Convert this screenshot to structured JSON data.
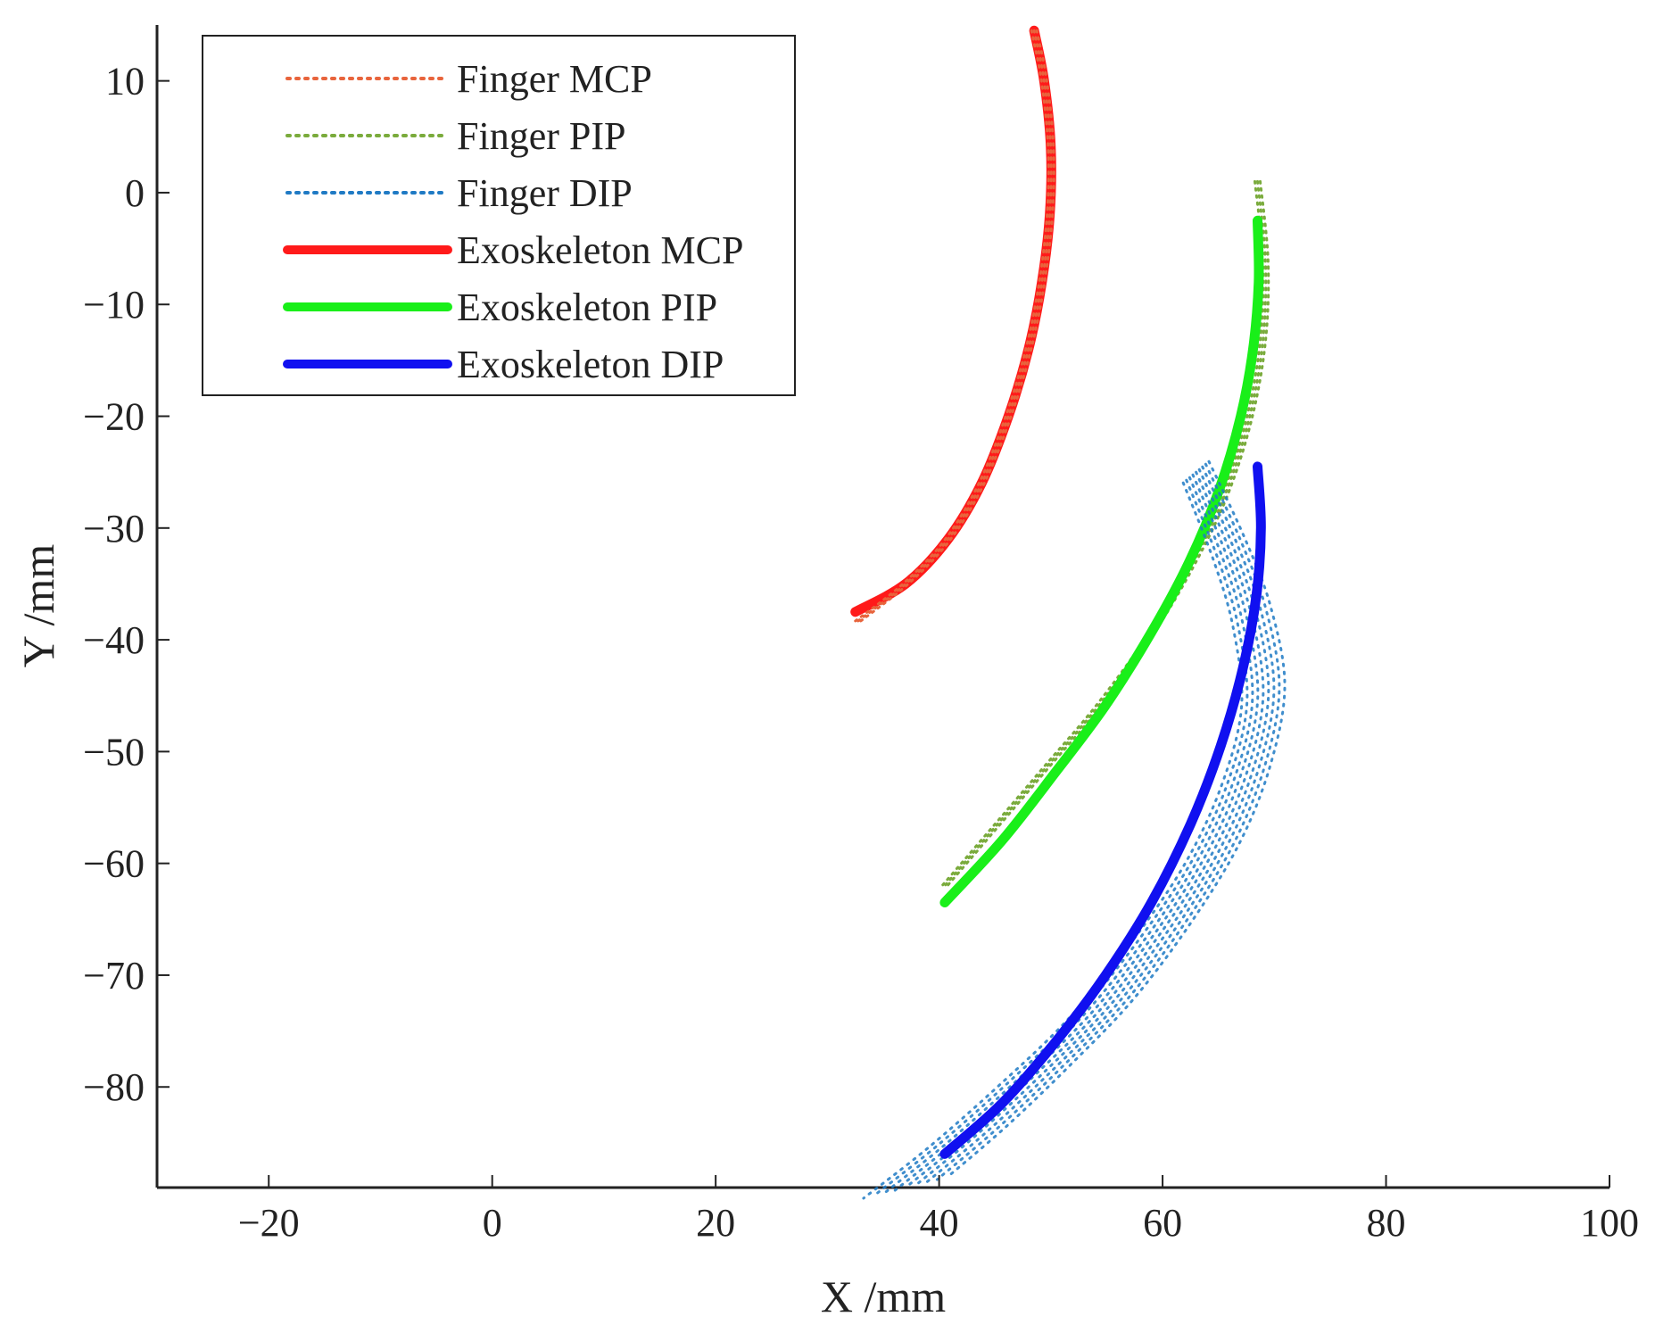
{
  "chart_data": {
    "type": "line",
    "title": "",
    "xlabel": "X /mm",
    "ylabel": "Y /mm",
    "xlim": [
      -30,
      100
    ],
    "ylim": [
      -89,
      15
    ],
    "xticks": [
      -20,
      0,
      20,
      40,
      60,
      80,
      100
    ],
    "yticks": [
      10,
      0,
      -10,
      -20,
      -30,
      -40,
      -50,
      -60,
      -70,
      -80
    ],
    "xtick_labels": [
      "−20",
      "0",
      "20",
      "40",
      "60",
      "80",
      "100"
    ],
    "ytick_labels": [
      "10",
      "0",
      "−10",
      "−20",
      "−30",
      "−40",
      "−50",
      "−60",
      "−70",
      "−80"
    ],
    "grid": false,
    "legend_position": "top-left",
    "series": [
      {
        "name": "Finger MCP",
        "style": "dotted",
        "color": "#e8643c",
        "x": [
          48.5,
          49.4,
          50.0,
          49.9,
          49.2,
          48.0,
          46.2,
          43.8,
          40.8,
          37.0,
          32.5
        ],
        "y": [
          14.5,
          10.0,
          4.0,
          -2.0,
          -8.0,
          -14.0,
          -20.0,
          -26.0,
          -31.0,
          -35.0,
          -38.5
        ]
      },
      {
        "name": "Finger PIP",
        "style": "dotted",
        "color": "#7aab3c",
        "x": [
          68.5,
          69.2,
          69.0,
          67.8,
          65.6,
          62.5,
          58.6,
          54.2,
          49.5,
          44.8,
          40.5
        ],
        "y": [
          1.0,
          -6.0,
          -13.0,
          -20.0,
          -27.0,
          -33.5,
          -40.0,
          -46.0,
          -51.5,
          -57.0,
          -62.0
        ]
      },
      {
        "name": "Finger DIP",
        "style": "dotted",
        "color": "#1f7ac4",
        "x": [
          63.0,
          66.0,
          68.0,
          69.0,
          67.5,
          64.5,
          60.0,
          54.5,
          48.5,
          42.5,
          37.0
        ],
        "y": [
          -25.0,
          -32.0,
          -38.0,
          -45.0,
          -52.0,
          -59.0,
          -66.0,
          -73.0,
          -79.0,
          -84.5,
          -89.0
        ]
      },
      {
        "name": "Exoskeleton MCP",
        "style": "solid",
        "color": "#ff1a1a",
        "x": [
          48.5,
          49.4,
          50.0,
          49.9,
          49.2,
          48.0,
          46.2,
          43.8,
          40.8,
          37.0,
          32.5
        ],
        "y": [
          14.5,
          10.0,
          4.0,
          -2.0,
          -8.0,
          -14.0,
          -20.0,
          -26.0,
          -31.0,
          -35.0,
          -37.5
        ]
      },
      {
        "name": "Exoskeleton PIP",
        "style": "solid",
        "color": "#19ef19",
        "x": [
          68.5,
          68.6,
          68.1,
          67.0,
          65.1,
          62.4,
          58.9,
          54.8,
          50.3,
          45.6,
          40.5
        ],
        "y": [
          -2.5,
          -8.0,
          -14.0,
          -20.0,
          -26.5,
          -33.0,
          -39.5,
          -46.0,
          -52.0,
          -58.0,
          -63.5
        ]
      },
      {
        "name": "Exoskeleton DIP",
        "style": "solid",
        "color": "#1010f0",
        "x": [
          68.5,
          68.8,
          68.4,
          67.2,
          65.2,
          62.5,
          59.0,
          54.9,
          50.4,
          45.6,
          40.5
        ],
        "y": [
          -24.5,
          -30.0,
          -36.0,
          -42.5,
          -49.5,
          -56.5,
          -63.5,
          -70.0,
          -76.0,
          -81.5,
          -86.0
        ]
      }
    ]
  }
}
